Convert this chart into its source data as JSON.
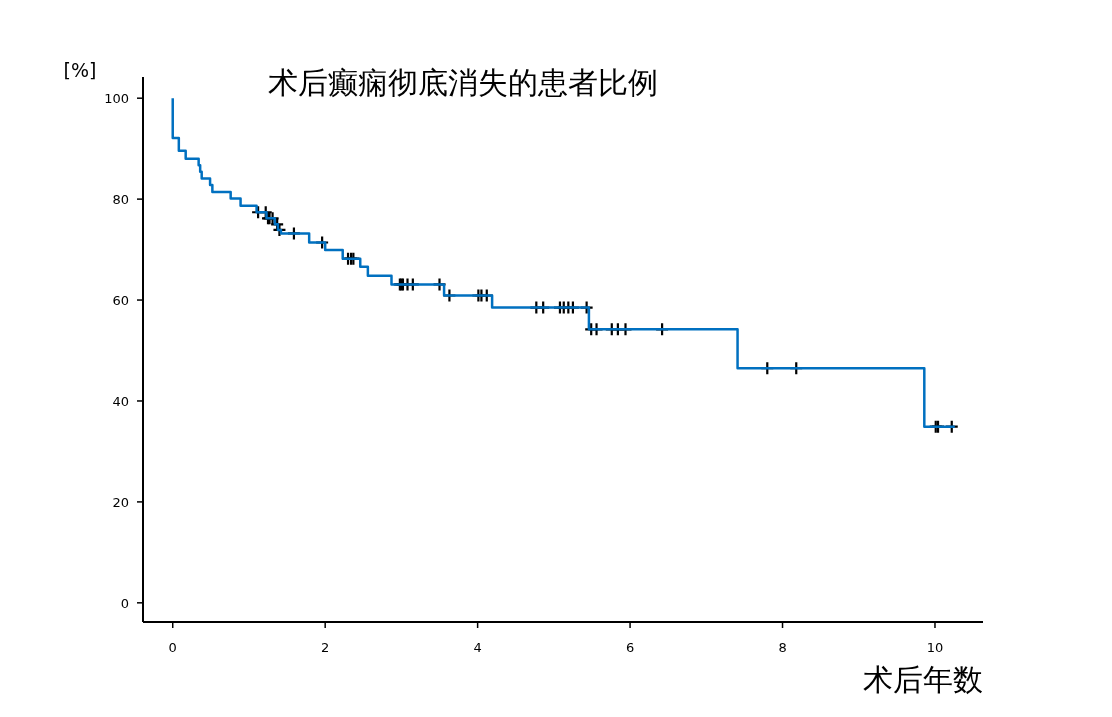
{
  "chart_data": {
    "type": "step",
    "title": "术后癫痫彻底消失的患者比例",
    "xlabel": "术后年数",
    "ylabel": "[%]",
    "xlim": [
      -0.39,
      10.63
    ],
    "ylim": [
      -3.8,
      104.2
    ],
    "xticks": [
      0,
      2,
      4,
      6,
      8,
      10
    ],
    "yticks": [
      0,
      20,
      40,
      60,
      80,
      100
    ],
    "grid": false,
    "series": [
      {
        "type": "step",
        "color": "#0070c0",
        "x": [
          0,
          0,
          0.08,
          0.17,
          0.34,
          0.36,
          0.38,
          0.49,
          0.52,
          0.76,
          0.89,
          1.1,
          1.23,
          1.34,
          1.38,
          1.42,
          1.79,
          2.0,
          2.23,
          2.46,
          2.56,
          2.87,
          3.56,
          4.19,
          5.46,
          7.41,
          9.86,
          10.26
        ],
        "values": [
          100,
          92.1,
          89.6,
          88.0,
          86.7,
          85.4,
          84.1,
          82.8,
          81.4,
          80.1,
          78.7,
          77.4,
          76.2,
          75.0,
          73.9,
          73.2,
          71.4,
          69.9,
          68.2,
          66.6,
          64.8,
          63.1,
          60.9,
          58.5,
          54.2,
          46.5,
          34.9,
          34.9
        ]
      },
      {
        "type": "scatter",
        "color": "#000000",
        "marker": "cross",
        "x": [
          1.12,
          1.22,
          1.25,
          1.27,
          1.31,
          1.37,
          1.4,
          1.59,
          1.96,
          2.3,
          2.34,
          2.37,
          2.98,
          3.0,
          3.02,
          3.08,
          3.15,
          3.5,
          3.63,
          4.01,
          4.05,
          4.12,
          4.77,
          4.86,
          5.08,
          5.13,
          5.19,
          5.25,
          5.43,
          5.49,
          5.56,
          5.76,
          5.84,
          5.94,
          6.42,
          7.8,
          8.18,
          10.01,
          10.04,
          10.22
        ],
        "values": [
          77.4,
          77.4,
          76.2,
          76.2,
          76.2,
          75.0,
          73.9,
          73.2,
          71.4,
          68.2,
          68.2,
          68.2,
          63.1,
          63.1,
          63.1,
          63.1,
          63.1,
          63.1,
          60.9,
          60.9,
          60.9,
          60.9,
          58.5,
          58.5,
          58.5,
          58.5,
          58.5,
          58.5,
          58.5,
          54.2,
          54.2,
          54.2,
          54.2,
          54.2,
          54.2,
          46.5,
          46.5,
          34.9,
          34.9,
          34.9
        ]
      }
    ]
  }
}
